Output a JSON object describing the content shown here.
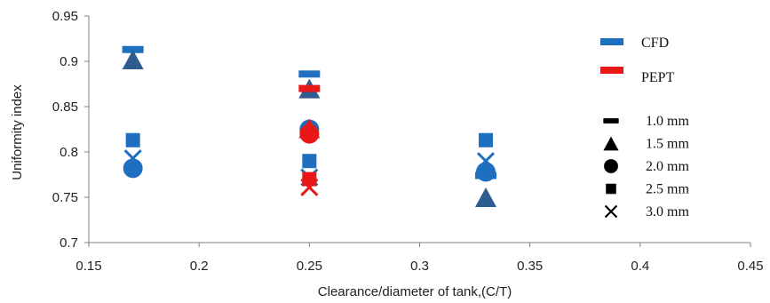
{
  "chart_data": {
    "type": "scatter",
    "xlabel": "Clearance/diameter of tank,(C/T)",
    "ylabel": "Uniformity index",
    "xlim": [
      0.15,
      0.45
    ],
    "ylim": [
      0.7,
      0.95
    ],
    "x_ticks": [
      "0.15",
      "0.2",
      "0.25",
      "0.3",
      "0.35",
      "0.4",
      "0.45"
    ],
    "y_ticks": [
      "0.7",
      "0.75",
      "0.8",
      "0.85",
      "0.9",
      "0.95"
    ],
    "grid": false,
    "legend_placement": "right",
    "series": [
      {
        "name": "CFD",
        "color": "#1f6fc1",
        "points": [
          {
            "x": 0.17,
            "y": 0.913,
            "marker": "dash"
          },
          {
            "x": 0.17,
            "y": 0.902,
            "marker": "triangle"
          },
          {
            "x": 0.17,
            "y": 0.813,
            "marker": "square"
          },
          {
            "x": 0.17,
            "y": 0.793,
            "marker": "cross"
          },
          {
            "x": 0.17,
            "y": 0.782,
            "marker": "circle"
          },
          {
            "x": 0.25,
            "y": 0.886,
            "marker": "dash"
          },
          {
            "x": 0.25,
            "y": 0.87,
            "marker": "triangle"
          },
          {
            "x": 0.25,
            "y": 0.825,
            "marker": "circle"
          },
          {
            "x": 0.25,
            "y": 0.79,
            "marker": "square"
          },
          {
            "x": 0.25,
            "y": 0.772,
            "marker": "cross"
          },
          {
            "x": 0.33,
            "y": 0.813,
            "marker": "square"
          },
          {
            "x": 0.33,
            "y": 0.79,
            "marker": "cross"
          },
          {
            "x": 0.33,
            "y": 0.778,
            "marker": "circle"
          },
          {
            "x": 0.33,
            "y": 0.774,
            "marker": "dash"
          },
          {
            "x": 0.33,
            "y": 0.75,
            "marker": "triangle"
          }
        ]
      },
      {
        "name": "PEPT",
        "color": "#e81818",
        "points": [
          {
            "x": 0.25,
            "y": 0.87,
            "marker": "dash"
          },
          {
            "x": 0.25,
            "y": 0.826,
            "marker": "triangle"
          },
          {
            "x": 0.25,
            "y": 0.82,
            "marker": "circle"
          },
          {
            "x": 0.25,
            "y": 0.77,
            "marker": "square"
          },
          {
            "x": 0.25,
            "y": 0.761,
            "marker": "cross"
          }
        ]
      }
    ],
    "marker_legend": [
      {
        "label": "1.0 mm",
        "marker": "dash"
      },
      {
        "label": "1.5 mm",
        "marker": "triangle"
      },
      {
        "label": "2.0 mm",
        "marker": "circle"
      },
      {
        "label": "2.5 mm",
        "marker": "square"
      },
      {
        "label": "3.0 mm",
        "marker": "cross"
      }
    ],
    "axis_color": "#808080",
    "dark_triangle_color": "#2e5c8f",
    "legend_marker_color": "#000000"
  }
}
